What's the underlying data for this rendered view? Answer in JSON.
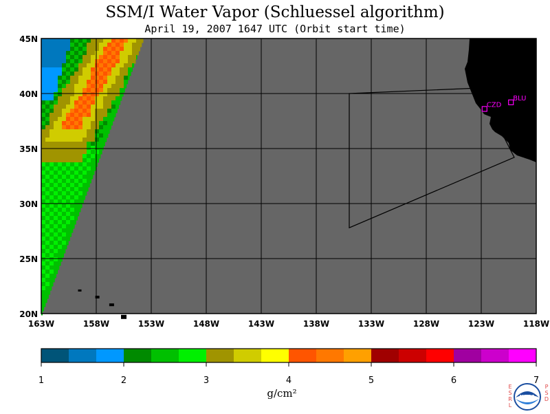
{
  "title": "SSM/I Water Vapor (Schluessel algorithm)",
  "subtitle": "April 19, 2007  1647 UTC  (Orbit start time)",
  "map": {
    "lon_range": [
      -163,
      -118
    ],
    "lat_range": [
      20,
      45
    ],
    "lon_ticks": [
      {
        "value": -163,
        "label": "163W"
      },
      {
        "value": -158,
        "label": "158W"
      },
      {
        "value": -153,
        "label": "153W"
      },
      {
        "value": -148,
        "label": "148W"
      },
      {
        "value": -143,
        "label": "143W"
      },
      {
        "value": -138,
        "label": "138W"
      },
      {
        "value": -133,
        "label": "133W"
      },
      {
        "value": -128,
        "label": "128W"
      },
      {
        "value": -123,
        "label": "123W"
      },
      {
        "value": -118,
        "label": "118W"
      }
    ],
    "lat_ticks": [
      {
        "value": 45,
        "label": "45N"
      },
      {
        "value": 40,
        "label": "40N"
      },
      {
        "value": 35,
        "label": "35N"
      },
      {
        "value": 30,
        "label": "30N"
      },
      {
        "value": 25,
        "label": "25N"
      },
      {
        "value": 20,
        "label": "20N"
      }
    ],
    "background_color": "#666666",
    "land_color": "#000000",
    "stations": [
      {
        "label": "CZD",
        "lon": -122.7,
        "lat": 38.6,
        "color": "#ff00ff"
      },
      {
        "label": "BLU",
        "lon": -120.3,
        "lat": 39.2,
        "color": "#ff00ff"
      }
    ],
    "region_outline": [
      [
        -135,
        40
      ],
      [
        -123.2,
        40.5
      ],
      [
        -120,
        34.2
      ],
      [
        -135,
        27.8
      ]
    ]
  },
  "colorbar": {
    "ticks": [
      "1",
      "2",
      "3",
      "4",
      "5",
      "6",
      "7"
    ],
    "colors": [
      "#005478",
      "#0078be",
      "#0098ff",
      "#008a00",
      "#00c000",
      "#00f000",
      "#a09400",
      "#d0cc00",
      "#ffff00",
      "#ff5500",
      "#ff7800",
      "#ffa000",
      "#a00000",
      "#cc0000",
      "#ff0000",
      "#a000a0",
      "#cc00cc",
      "#ff00ff"
    ]
  },
  "units": "g/cm²",
  "logo": {
    "text": "NOAA",
    "left_letters": "ESRL",
    "right_letters": "PSD"
  }
}
